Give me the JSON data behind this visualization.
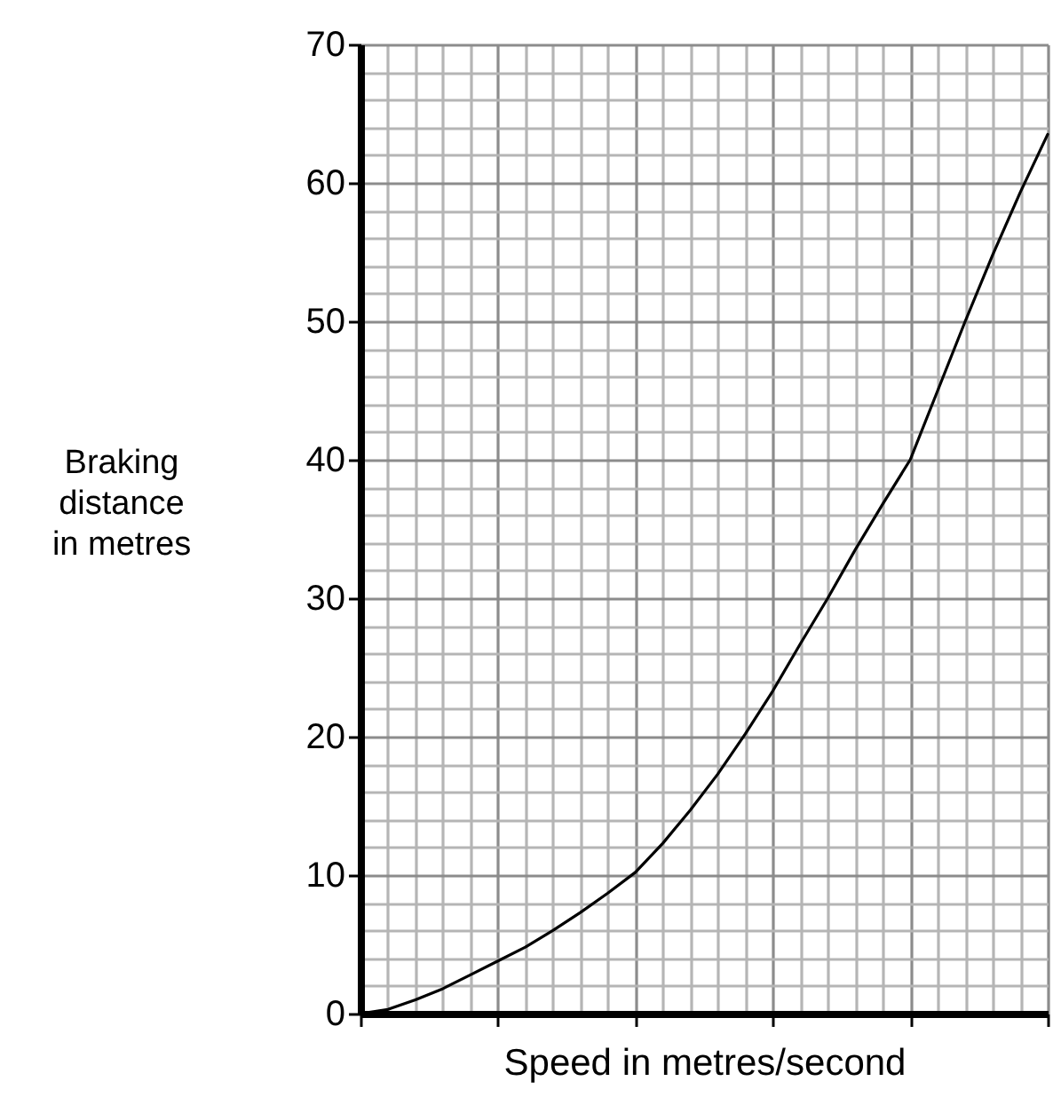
{
  "chart_data": {
    "type": "line",
    "xlabel": "Speed in metres/second",
    "ylabel": "Braking distance in metres",
    "categories": [
      null,
      null,
      null,
      null,
      null,
      null,
      null,
      null,
      null,
      null,
      null,
      null,
      null,
      null,
      null,
      null,
      null,
      null,
      null,
      null,
      null,
      null,
      null,
      null,
      null,
      null
    ],
    "series": [
      {
        "color": "#000000",
        "values": [
          0,
          0.3,
          1,
          1.8,
          2.8,
          3.8,
          4.8,
          6,
          7.3,
          8.7,
          10.2,
          12.3,
          14.7,
          17.3,
          20.2,
          23.3,
          26.7,
          30,
          33.5,
          36.8,
          40,
          45,
          50,
          54.8,
          59.3,
          63.5
        ]
      }
    ],
    "ylim": [
      0,
      70
    ],
    "yticks": [
      0,
      10,
      20,
      30,
      40,
      50,
      60,
      70
    ],
    "grid": true,
    "marker": "none",
    "line_style": "solid"
  }
}
